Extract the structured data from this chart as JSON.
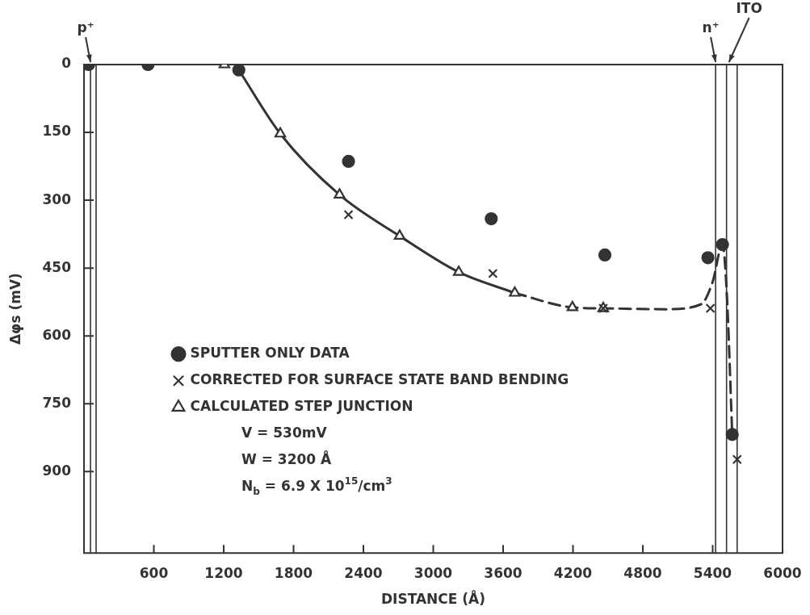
{
  "chart_data": {
    "type": "scatter",
    "xlabel": "DISTANCE (Å)",
    "ylabel": "Δφs (mV)",
    "xlim": [
      0,
      6000
    ],
    "xticks": [
      {
        "value": 0,
        "label": null
      },
      600,
      1200,
      1800,
      2400,
      3000,
      3600,
      4200,
      4800,
      5400,
      6000
    ],
    "ylim": [
      1080,
      0
    ],
    "yticks": [
      0,
      150,
      300,
      450,
      600,
      750,
      900
    ],
    "legend": "left",
    "series": [
      {
        "name": "SPUTTER ONLY DATA",
        "type": "scatter",
        "marker": "circle",
        "color": "#333333",
        "x": [
          40,
          550,
          1330,
          2272,
          3498,
          4474,
          5359,
          5484,
          5568
        ],
        "values": [
          0,
          0,
          12,
          214,
          341,
          421,
          427,
          398,
          818
        ]
      },
      {
        "name": "CORRECTED FOR SURFACE STATE BAND BENDING",
        "type": "scatter",
        "marker": "cross",
        "color": "#333333",
        "x": [
          2272,
          3512,
          4460,
          5380,
          5610
        ],
        "values": [
          332,
          462,
          539,
          539,
          873
        ]
      },
      {
        "name": "CALCULATED STEP JUNCTION",
        "type": "scatter",
        "marker": "triangle",
        "color": "#333333",
        "x": [
          1206,
          1686,
          2195,
          2711,
          3219,
          3700,
          4195,
          4460
        ],
        "values": [
          0,
          153,
          288,
          379,
          459,
          505,
          537,
          539
        ]
      },
      {
        "type": "line",
        "marker": "none",
        "line_style": "solid",
        "color": "#333333",
        "x": [
          1330,
          1686,
          2195,
          2711,
          3219,
          3700
        ],
        "values": [
          12,
          153,
          288,
          379,
          459,
          505
        ]
      },
      {
        "type": "line",
        "marker": "none",
        "line_style": "dashed",
        "color": "#333333",
        "x": [
          3700,
          4195,
          4460,
          5000,
          5300,
          5400,
          5484,
          5520,
          5568
        ],
        "values": [
          505,
          537,
          539,
          541,
          530,
          480,
          398,
          500,
          818
        ]
      }
    ],
    "ref_lines": [
      {
        "axis": "x",
        "value": 56,
        "label": "p⁺",
        "color": "#333333"
      },
      {
        "axis": "x",
        "value": 104,
        "color": "#333333"
      },
      {
        "axis": "x",
        "value": 5425,
        "label": "n⁺",
        "color": "#333333"
      },
      {
        "axis": "x",
        "value": 5519,
        "label": "ITO",
        "color": "#333333"
      },
      {
        "axis": "x",
        "value": 5610,
        "color": "#333333"
      }
    ],
    "annotations": [
      "V = 530mV",
      "W = 3200 Å",
      "N$_{b}$ = 6.9 X 10$^{15}$/cm$^{3}$"
    ]
  }
}
